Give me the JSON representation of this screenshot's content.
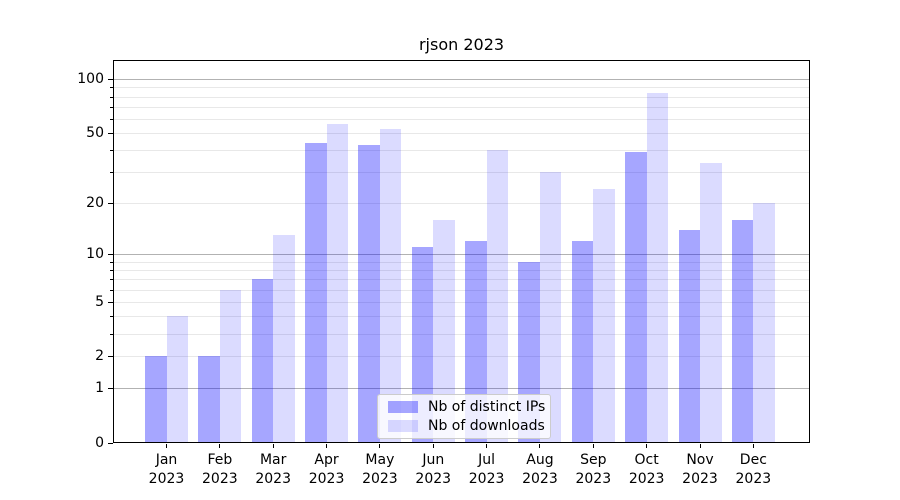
{
  "chart_data": {
    "type": "bar",
    "title": "rjson 2023",
    "categories": [
      "Jan 2023",
      "Feb 2023",
      "Mar 2023",
      "Apr 2023",
      "May 2023",
      "Jun 2023",
      "Jul 2023",
      "Aug 2023",
      "Sep 2023",
      "Oct 2023",
      "Nov 2023",
      "Dec 2023"
    ],
    "series": [
      {
        "name": "Nb of distinct IPs",
        "color": "rgba(0,0,255,0.35)",
        "values": [
          2,
          2,
          7,
          44,
          43,
          11,
          12,
          9,
          12,
          39,
          14,
          16
        ]
      },
      {
        "name": "Nb of downloads",
        "color": "rgba(0,0,255,0.14)",
        "values": [
          4,
          6,
          13,
          56,
          53,
          16,
          40,
          30,
          24,
          84,
          34,
          20
        ]
      }
    ],
    "xlabel": "",
    "ylabel": "",
    "yscale": "log1p",
    "ylim": [
      0,
      129
    ],
    "yticks": [
      0,
      1,
      2,
      5,
      10,
      20,
      50,
      100
    ],
    "major_gridlines": [
      1,
      10,
      100
    ],
    "minor_gridlines": [
      2,
      3,
      4,
      5,
      6,
      7,
      8,
      9,
      20,
      30,
      40,
      50,
      60,
      70,
      80,
      90
    ],
    "grid": true,
    "legend": {
      "position": "lower center",
      "labels": [
        "Nb of distinct IPs",
        "Nb of downloads"
      ]
    },
    "colors": {
      "grid_major": "#b2b2b2",
      "grid_minor": "#e8e8e8",
      "axis": "#000000",
      "background": "#ffffff"
    }
  }
}
